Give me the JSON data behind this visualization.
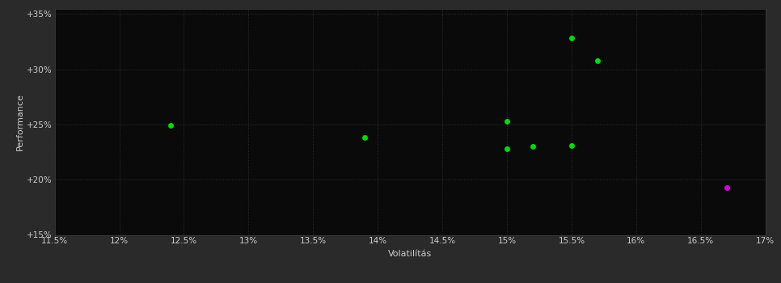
{
  "background_color": "#2a2a2a",
  "plot_bg_color": "#0a0a0a",
  "grid_color": "#404040",
  "text_color": "#cccccc",
  "xlabel": "Volatilítás",
  "ylabel": "Performance",
  "xlim": [
    0.115,
    0.17
  ],
  "ylim": [
    0.15,
    0.355
  ],
  "xticks": [
    0.115,
    0.12,
    0.125,
    0.13,
    0.135,
    0.14,
    0.145,
    0.15,
    0.155,
    0.16,
    0.165,
    0.17
  ],
  "xtick_labels": [
    "11.5%",
    "12%",
    "12.5%",
    "13%",
    "13.5%",
    "14%",
    "14.5%",
    "15%",
    "15.5%",
    "16%",
    "16.5%",
    "17%"
  ],
  "yticks": [
    0.15,
    0.2,
    0.25,
    0.3,
    0.35
  ],
  "ytick_labels": [
    "+15%",
    "+20%",
    "+25%",
    "+30%",
    "+35%"
  ],
  "green_points": [
    [
      0.124,
      0.249
    ],
    [
      0.139,
      0.238
    ],
    [
      0.15,
      0.253
    ],
    [
      0.15,
      0.228
    ],
    [
      0.152,
      0.23
    ],
    [
      0.155,
      0.231
    ],
    [
      0.155,
      0.328
    ],
    [
      0.157,
      0.308
    ]
  ],
  "magenta_points": [
    [
      0.167,
      0.193
    ]
  ],
  "green_color": "#00dd00",
  "magenta_color": "#dd00dd",
  "marker_size": 5,
  "axis_label_fontsize": 8,
  "tick_fontsize": 7.5
}
